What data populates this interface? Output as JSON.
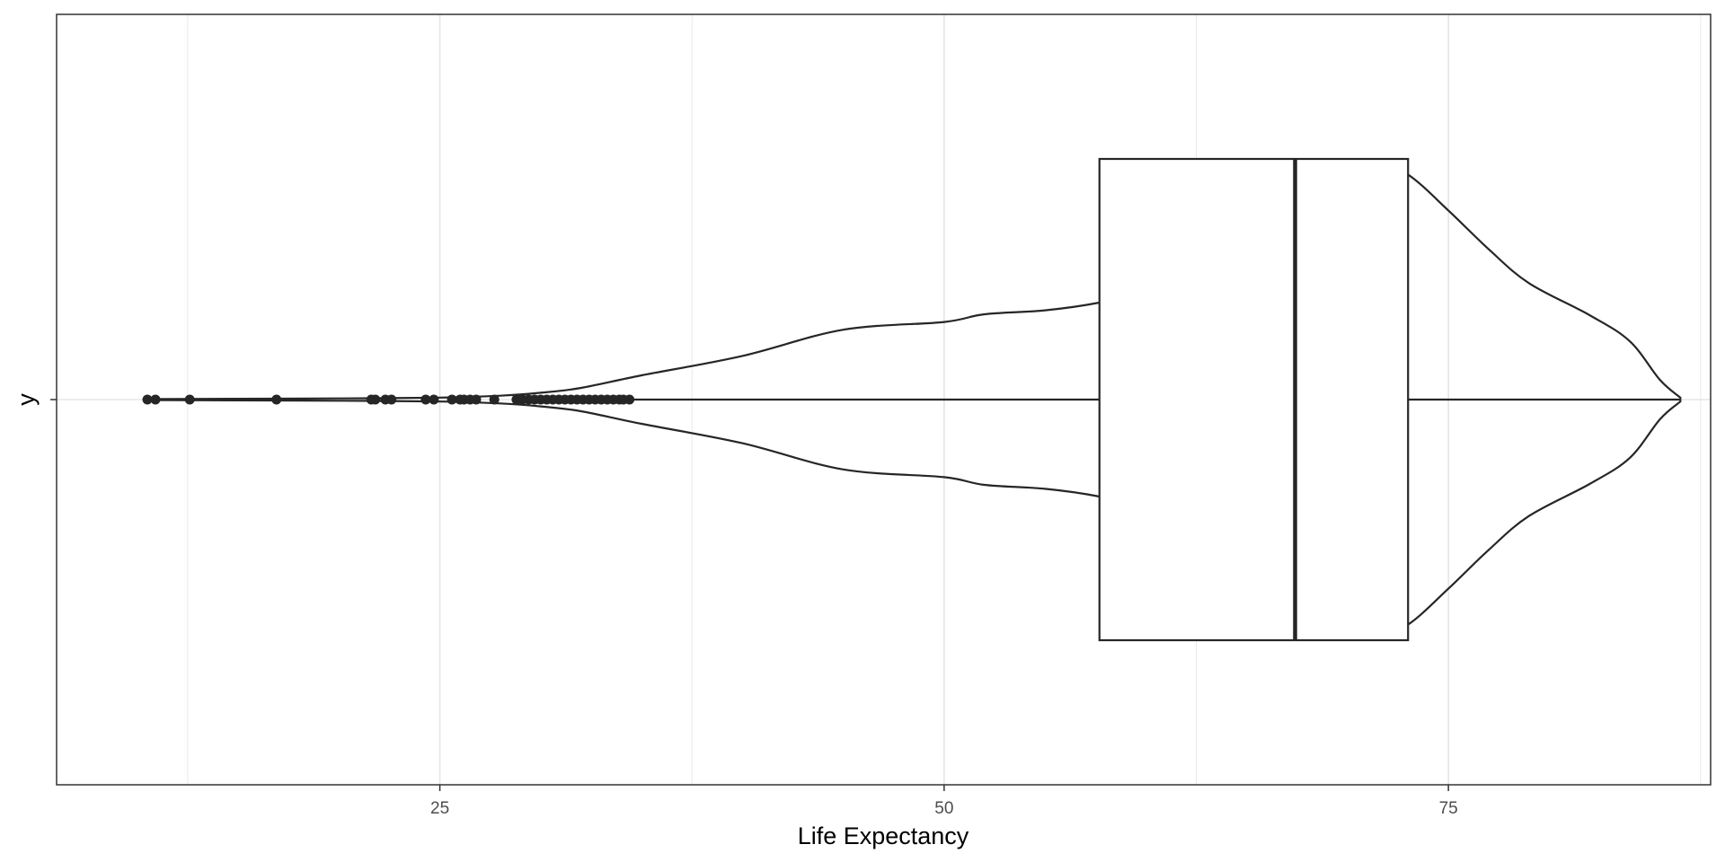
{
  "chart_data": {
    "type": "violin",
    "xlabel": "Life Expectancy",
    "ylabel": "y",
    "xlim": [
      6.0,
      88.0
    ],
    "grid": true,
    "x_ticks": [
      25,
      50,
      75
    ],
    "x_tick_labels": [
      "25",
      "50",
      "75"
    ],
    "y_ticks": [
      "y"
    ],
    "box": {
      "q1": 57.7,
      "median": 67.4,
      "q3": 73.0,
      "whisker_low": 34.6,
      "whisker_high": 86.5
    },
    "outliers": [
      10.5,
      10.9,
      12.6,
      16.9,
      21.6,
      21.8,
      22.3,
      22.6,
      24.3,
      24.7,
      25.6,
      26.0,
      26.2,
      26.5,
      26.8,
      27.7,
      28.8,
      29.1,
      29.4,
      29.7,
      30.0,
      30.3,
      30.6,
      30.9,
      31.2,
      31.5,
      31.8,
      32.1,
      32.4,
      32.7,
      33.0,
      33.3,
      33.6,
      33.9,
      34.1,
      34.4
    ],
    "density": {
      "x": [
        10.4,
        15,
        20,
        25,
        28,
        30,
        32,
        35,
        40,
        45,
        50,
        52,
        55,
        57.7,
        60,
        65,
        68,
        70,
        71.3,
        73,
        75,
        77,
        79,
        82,
        84,
        85.5,
        86.5
      ],
      "width": [
        0.005,
        0.008,
        0.012,
        0.02,
        0.04,
        0.07,
        0.12,
        0.25,
        0.45,
        0.72,
        0.8,
        0.88,
        0.92,
        1.0,
        1.12,
        1.6,
        2.05,
        2.38,
        2.46,
        2.32,
        1.95,
        1.55,
        1.2,
        0.87,
        0.6,
        0.2,
        0.02
      ]
    },
    "colors": {
      "line": "#262626",
      "grid": "#e5e5e5",
      "panel_border": "#333333"
    }
  }
}
